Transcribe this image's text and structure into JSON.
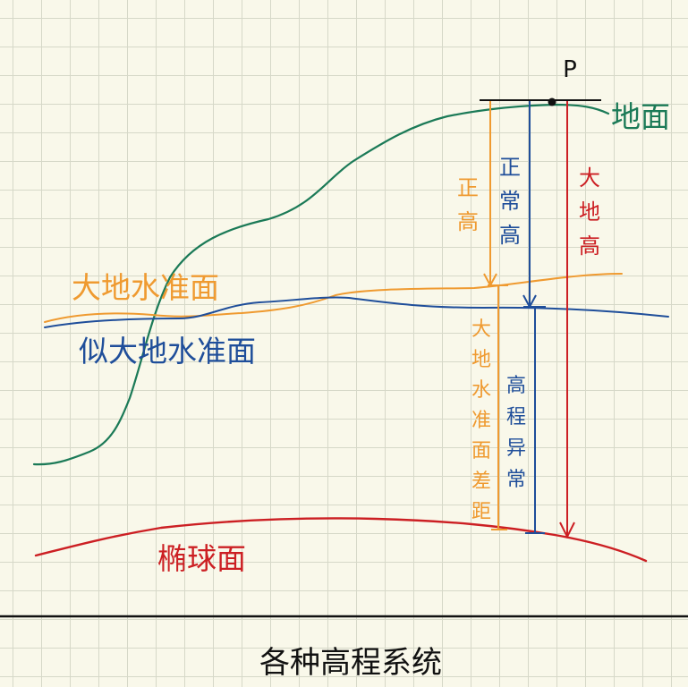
{
  "title": "各种高程系统",
  "point_label": "P",
  "surfaces": {
    "ground": "地面",
    "geoid": "大地水准面",
    "quasigeoid": "似大地水准面",
    "ellipsoid": "椭球面"
  },
  "heights": {
    "orthometric": [
      "正",
      "高"
    ],
    "normal": [
      "正",
      "常",
      "高"
    ],
    "geodetic": [
      "大",
      "地",
      "高"
    ],
    "geoid_undulation": [
      "大",
      "地",
      "水",
      "准",
      "面",
      "差",
      "距"
    ],
    "height_anomaly": [
      "高",
      "程",
      "异",
      "常"
    ]
  },
  "colors": {
    "ground": "#1b7a57",
    "geoid": "#ef9a30",
    "quasigeoid": "#1f4e9a",
    "ellipsoid": "#cc1f23",
    "title": "#111111"
  }
}
